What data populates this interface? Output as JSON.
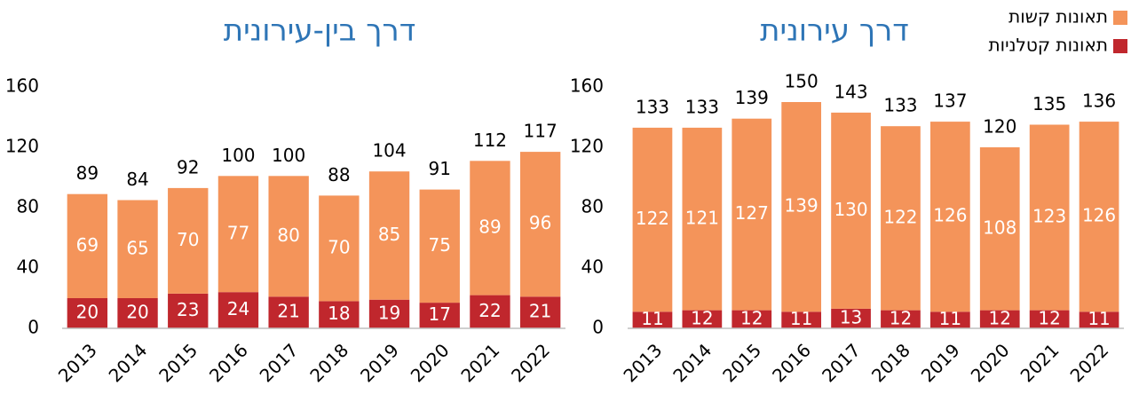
{
  "chart_data": [
    {
      "type": "bar",
      "stacked": true,
      "title": "דרך בין-עירונית",
      "categories": [
        "2013",
        "2014",
        "2015",
        "2016",
        "2017",
        "2018",
        "2019",
        "2020",
        "2021",
        "2022"
      ],
      "series": [
        {
          "name": "תאונות קטלניות",
          "color": "#c0272d",
          "values": [
            20,
            20,
            23,
            24,
            21,
            18,
            19,
            17,
            22,
            21
          ]
        },
        {
          "name": "תאונות קשות",
          "color": "#f4945a",
          "values": [
            69,
            65,
            70,
            77,
            80,
            70,
            85,
            75,
            89,
            96
          ]
        }
      ],
      "totals": [
        89,
        84,
        92,
        100,
        100,
        88,
        104,
        91,
        112,
        117
      ],
      "ylim": [
        0,
        160
      ],
      "yticks": [
        0,
        40,
        80,
        120,
        160
      ]
    },
    {
      "type": "bar",
      "stacked": true,
      "title": "דרך עירונית",
      "categories": [
        "2013",
        "2014",
        "2015",
        "2016",
        "2017",
        "2018",
        "2019",
        "2020",
        "2021",
        "2022"
      ],
      "series": [
        {
          "name": "תאונות קטלניות",
          "color": "#c0272d",
          "values": [
            11,
            12,
            12,
            11,
            13,
            12,
            11,
            12,
            12,
            11
          ]
        },
        {
          "name": "תאונות קשות",
          "color": "#f4945a",
          "values": [
            122,
            121,
            127,
            139,
            130,
            122,
            126,
            108,
            123,
            126
          ]
        }
      ],
      "totals": [
        133,
        133,
        139,
        150,
        143,
        133,
        137,
        120,
        135,
        136
      ],
      "ylim": [
        0,
        160
      ],
      "yticks": [
        0,
        40,
        80,
        120,
        160
      ],
      "legend": "top-right"
    }
  ]
}
